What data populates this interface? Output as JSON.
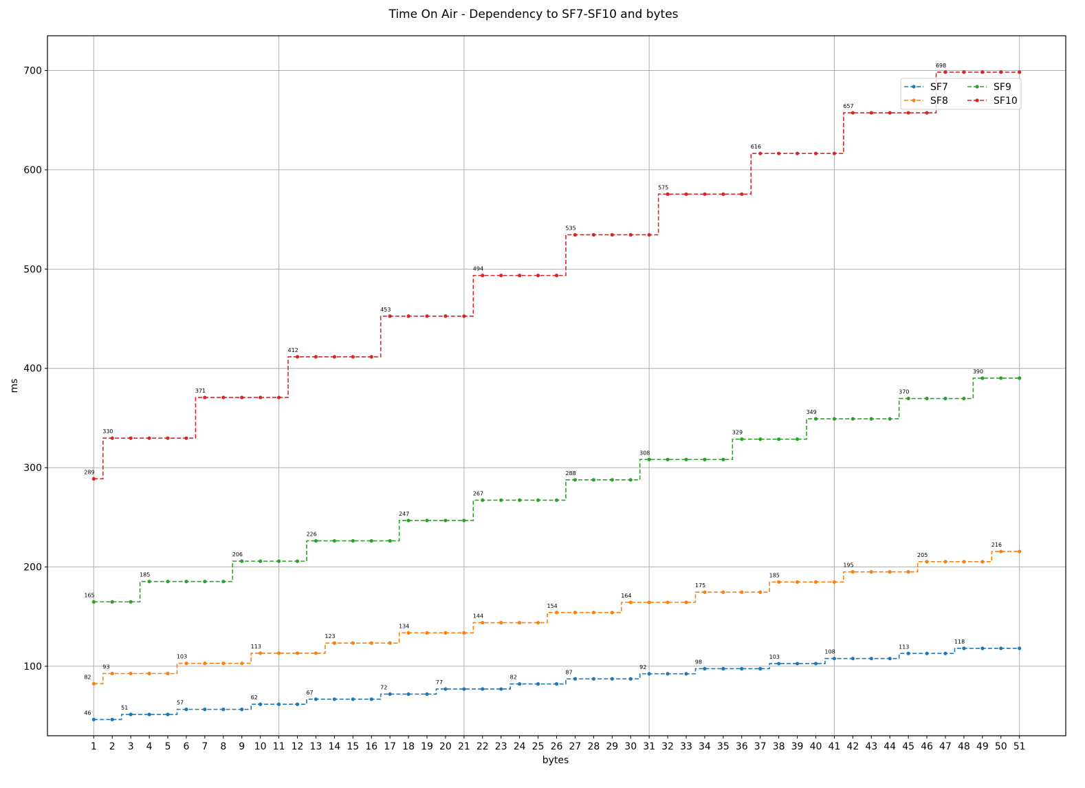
{
  "chart_data": {
    "type": "line",
    "title": "Time On Air - Dependency to SF7-SF10 and bytes",
    "xlabel": "bytes",
    "ylabel": "ms",
    "x": [
      1,
      2,
      3,
      4,
      5,
      6,
      7,
      8,
      9,
      10,
      11,
      12,
      13,
      14,
      15,
      16,
      17,
      18,
      19,
      20,
      21,
      22,
      23,
      24,
      25,
      26,
      27,
      28,
      29,
      30,
      31,
      32,
      33,
      34,
      35,
      36,
      37,
      38,
      39,
      40,
      41,
      42,
      43,
      44,
      45,
      46,
      47,
      48,
      49,
      50,
      51
    ],
    "xlim": [
      -1.5,
      53.5
    ],
    "ylim": [
      30,
      735
    ],
    "yticks": [
      100,
      200,
      300,
      400,
      500,
      600,
      700
    ],
    "x_gridlines": [
      1,
      11,
      21,
      31,
      41,
      51
    ],
    "y_grid": true,
    "legend": {
      "position": "upper-right",
      "columns": 2
    },
    "series": [
      {
        "name": "SF7",
        "color": "#1f77b4",
        "values": [
          46.336,
          46.336,
          51.456,
          51.456,
          51.456,
          56.576,
          56.576,
          56.576,
          56.576,
          61.696,
          61.696,
          61.696,
          66.816,
          66.816,
          66.816,
          66.816,
          71.936,
          71.936,
          71.936,
          77.056,
          77.056,
          77.056,
          77.056,
          82.176,
          82.176,
          82.176,
          87.296,
          87.296,
          87.296,
          87.296,
          92.416,
          92.416,
          92.416,
          97.536,
          97.536,
          97.536,
          97.536,
          102.656,
          102.656,
          102.656,
          107.776,
          107.776,
          107.776,
          107.776,
          112.896,
          112.896,
          112.896,
          118.016,
          118.016,
          118.016,
          118.016
        ],
        "annotations": [
          [
            1,
            "46"
          ],
          [
            3,
            "51"
          ],
          [
            6,
            "57"
          ],
          [
            10,
            "62"
          ],
          [
            13,
            "67"
          ],
          [
            17,
            "72"
          ],
          [
            20,
            "77"
          ],
          [
            24,
            "82"
          ],
          [
            27,
            "87"
          ],
          [
            31,
            "92"
          ],
          [
            34,
            "98"
          ],
          [
            38,
            "103"
          ],
          [
            41,
            "108"
          ],
          [
            45,
            "113"
          ],
          [
            48,
            "118"
          ]
        ]
      },
      {
        "name": "SF8",
        "color": "#ff7f0e",
        "values": [
          82.432,
          92.672,
          92.672,
          92.672,
          92.672,
          102.912,
          102.912,
          102.912,
          102.912,
          113.152,
          113.152,
          113.152,
          113.152,
          123.392,
          123.392,
          123.392,
          123.392,
          133.632,
          133.632,
          133.632,
          133.632,
          143.872,
          143.872,
          143.872,
          143.872,
          154.112,
          154.112,
          154.112,
          154.112,
          164.352,
          164.352,
          164.352,
          164.352,
          174.592,
          174.592,
          174.592,
          174.592,
          184.832,
          184.832,
          184.832,
          184.832,
          195.072,
          195.072,
          195.072,
          195.072,
          205.312,
          205.312,
          205.312,
          205.312,
          215.552,
          215.552
        ],
        "annotations": [
          [
            1,
            "82"
          ],
          [
            2,
            "93"
          ],
          [
            6,
            "103"
          ],
          [
            10,
            "113"
          ],
          [
            14,
            "123"
          ],
          [
            18,
            "134"
          ],
          [
            22,
            "144"
          ],
          [
            26,
            "154"
          ],
          [
            30,
            "164"
          ],
          [
            34,
            "175"
          ],
          [
            38,
            "185"
          ],
          [
            42,
            "195"
          ],
          [
            46,
            "205"
          ],
          [
            50,
            "216"
          ]
        ]
      },
      {
        "name": "SF9",
        "color": "#2ca02c",
        "values": [
          164.864,
          164.864,
          164.864,
          185.344,
          185.344,
          185.344,
          185.344,
          185.344,
          205.824,
          205.824,
          205.824,
          205.824,
          226.304,
          226.304,
          226.304,
          226.304,
          226.304,
          246.784,
          246.784,
          246.784,
          246.784,
          267.264,
          267.264,
          267.264,
          267.264,
          267.264,
          287.744,
          287.744,
          287.744,
          287.744,
          308.224,
          308.224,
          308.224,
          308.224,
          308.224,
          328.704,
          328.704,
          328.704,
          328.704,
          349.184,
          349.184,
          349.184,
          349.184,
          349.184,
          369.664,
          369.664,
          369.664,
          369.664,
          390.144,
          390.144,
          390.144
        ],
        "annotations": [
          [
            1,
            "165"
          ],
          [
            4,
            "185"
          ],
          [
            9,
            "206"
          ],
          [
            13,
            "226"
          ],
          [
            18,
            "247"
          ],
          [
            22,
            "267"
          ],
          [
            27,
            "288"
          ],
          [
            31,
            "308"
          ],
          [
            36,
            "329"
          ],
          [
            40,
            "349"
          ],
          [
            45,
            "370"
          ],
          [
            49,
            "390"
          ]
        ]
      },
      {
        "name": "SF10",
        "color": "#d62728",
        "values": [
          288.768,
          329.728,
          329.728,
          329.728,
          329.728,
          329.728,
          370.688,
          370.688,
          370.688,
          370.688,
          370.688,
          411.648,
          411.648,
          411.648,
          411.648,
          411.648,
          452.608,
          452.608,
          452.608,
          452.608,
          452.608,
          493.568,
          493.568,
          493.568,
          493.568,
          493.568,
          534.528,
          534.528,
          534.528,
          534.528,
          534.528,
          575.488,
          575.488,
          575.488,
          575.488,
          575.488,
          616.448,
          616.448,
          616.448,
          616.448,
          616.448,
          657.408,
          657.408,
          657.408,
          657.408,
          657.408,
          698.368,
          698.368,
          698.368,
          698.368,
          698.368
        ],
        "annotations": [
          [
            1,
            "289"
          ],
          [
            2,
            "330"
          ],
          [
            7,
            "371"
          ],
          [
            12,
            "412"
          ],
          [
            17,
            "453"
          ],
          [
            22,
            "494"
          ],
          [
            27,
            "535"
          ],
          [
            32,
            "575"
          ],
          [
            37,
            "616"
          ],
          [
            42,
            "657"
          ],
          [
            47,
            "698"
          ]
        ]
      }
    ]
  }
}
